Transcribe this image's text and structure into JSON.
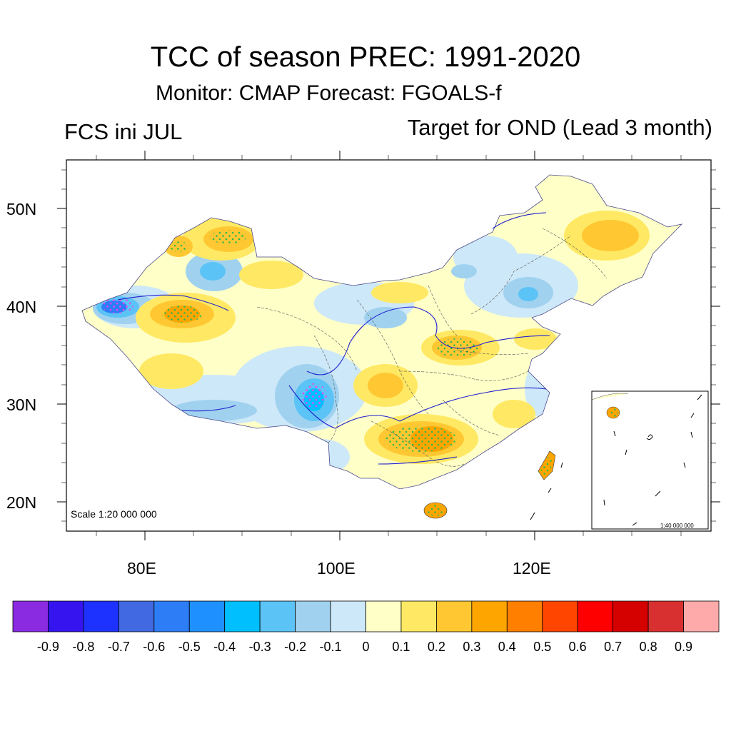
{
  "title": "TCC of season PREC: 1991-2020",
  "subtitle": "Monitor: CMAP   Forecast: FGOALS-f",
  "left_label": "FCS ini JUL",
  "right_label": "Target for OND (Lead 3 month)",
  "lat_labels": [
    "50N",
    "40N",
    "30N",
    "20N"
  ],
  "lon_labels": [
    "80E",
    "100E",
    "120E"
  ],
  "scale_note": "Scale 1:20 000 000",
  "inset_scale_note": "1:40 000 000",
  "colorbar": {
    "labels": [
      "-0.9",
      "-0.8",
      "-0.7",
      "-0.6",
      "-0.5",
      "-0.4",
      "-0.3",
      "-0.2",
      "-0.1",
      "0",
      "0.1",
      "0.2",
      "0.3",
      "0.4",
      "0.5",
      "0.6",
      "0.7",
      "0.8",
      "0.9"
    ],
    "colors": [
      "#8a2be2",
      "#3514f0",
      "#1e32ff",
      "#4169e1",
      "#2d7df6",
      "#1e90ff",
      "#00bfff",
      "#5bc3f5",
      "#a0d2f0",
      "#cde8f8",
      "#ffffc8",
      "#ffe964",
      "#ffc832",
      "#ffa500",
      "#ff7f00",
      "#ff4500",
      "#ff0000",
      "#d50000",
      "#d83030",
      "#ffaaaa"
    ]
  }
}
